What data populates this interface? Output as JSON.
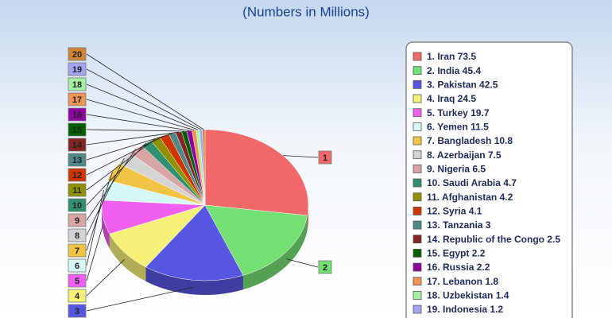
{
  "chart_data": {
    "type": "pie",
    "subtitle": "(Numbers in Millions)",
    "slice_labels": [
      "1",
      "2",
      "3",
      "4",
      "5",
      "6",
      "7",
      "8",
      "9",
      "10",
      "11",
      "12",
      "13",
      "14",
      "15",
      "16",
      "17",
      "18",
      "19",
      "20"
    ],
    "legend_labels": [
      "1. Iran 73.5",
      "2. India 45.4",
      "3. Pakistan 42.5",
      "4. Iraq 24.5",
      "5. Turkey 19.7",
      "6. Yemen 11.5",
      "7. Bangladesh 10.8",
      "8. Azerbaijan 7.5",
      "9. Nigeria 6.5",
      "10. Saudi Arabia 4.7",
      "11. Afghanistan 4.2",
      "12. Syria 4.1",
      "13. Tanzania 3",
      "14. Republic of the Congo 2.5",
      "15. Egypt 2.2",
      "16. Russia 2.2",
      "17. Lebanon 1.8",
      "18. Uzbekistan 1.4",
      "19. Indonesia 1.2",
      null
    ],
    "values": [
      73.5,
      45.4,
      42.5,
      24.5,
      19.7,
      11.5,
      10.8,
      7.5,
      6.5,
      4.7,
      4.2,
      4.1,
      3,
      2.5,
      2.2,
      2.2,
      1.8,
      1.4,
      1.2,
      1.1
    ],
    "colors": [
      "#f06868",
      "#74e074",
      "#5656e0",
      "#f4f078",
      "#f060f0",
      "#d4f8f8",
      "#f0c444",
      "#d4d4d4",
      "#d8a4a4",
      "#309070",
      "#909000",
      "#d03400",
      "#508888",
      "#802424",
      "#006000",
      "#9000a0",
      "#f09454",
      "#a4f0a4",
      "#a4a4f4",
      "#d08434"
    ]
  }
}
